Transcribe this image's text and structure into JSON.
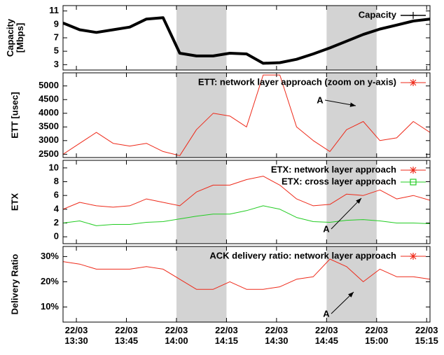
{
  "chart_data": [
    {
      "type": "line",
      "ylabel": "Capacity [Mbps]",
      "xlim": [
        806,
        916
      ],
      "ylim": [
        2.2,
        11.8
      ],
      "yticks": [
        3,
        5,
        7,
        9,
        11
      ],
      "legend": "top right",
      "shaded": [
        [
          840,
          855
        ],
        [
          885,
          900
        ]
      ],
      "x": [
        806,
        811,
        816,
        821,
        826,
        831,
        836,
        841,
        846,
        851,
        856,
        861,
        866,
        871,
        876,
        881,
        886,
        891,
        896,
        901,
        906,
        911,
        916
      ],
      "series": [
        {
          "name": "Capacity",
          "color": "#000000",
          "width": 4,
          "marker": "plus",
          "values": [
            9.2,
            8.2,
            7.8,
            8.2,
            8.6,
            9.8,
            10.0,
            4.7,
            4.3,
            4.3,
            4.7,
            4.6,
            3.2,
            3.3,
            3.8,
            4.6,
            5.5,
            6.5,
            7.5,
            8.3,
            8.9,
            9.5,
            9.8
          ]
        }
      ]
    },
    {
      "type": "line",
      "ylabel": "ETT [usec]",
      "xlim": [
        806,
        916
      ],
      "ylim": [
        2380,
        5480
      ],
      "yticks": [
        2500,
        3000,
        3500,
        4000,
        4500,
        5000
      ],
      "legend": "top right",
      "shaded": [
        [
          840,
          855
        ],
        [
          885,
          900
        ]
      ],
      "annotations": [
        "A"
      ],
      "x": [
        806,
        811,
        816,
        821,
        826,
        831,
        836,
        841,
        846,
        851,
        856,
        861,
        866,
        871,
        876,
        881,
        886,
        891,
        896,
        901,
        906,
        911,
        916
      ],
      "series": [
        {
          "name": "ETT: network layer approach (zoom on y-axis)",
          "color": "#ee2a1a",
          "width": 1,
          "marker": "star",
          "values": [
            2500,
            2900,
            3300,
            2900,
            2800,
            2900,
            2600,
            2450,
            3400,
            4000,
            3900,
            3500,
            5400,
            5400,
            3500,
            3000,
            2600,
            3400,
            3700,
            3000,
            3100,
            3700,
            3300
          ]
        }
      ]
    },
    {
      "type": "line",
      "ylabel": "ETX",
      "xlim": [
        806,
        916
      ],
      "ylim": [
        -1,
        11.1
      ],
      "yticks": [
        0,
        2,
        4,
        6,
        8,
        10
      ],
      "legend": "top right",
      "shaded": [
        [
          840,
          855
        ],
        [
          885,
          900
        ]
      ],
      "annotations": [
        "A"
      ],
      "x": [
        806,
        811,
        816,
        821,
        826,
        831,
        836,
        841,
        846,
        851,
        856,
        861,
        866,
        871,
        876,
        881,
        886,
        891,
        896,
        901,
        906,
        911,
        916
      ],
      "series": [
        {
          "name": "ETX: network layer approach",
          "color": "#ee2a1a",
          "width": 1,
          "marker": "star",
          "values": [
            4,
            5,
            4.5,
            4.3,
            4.5,
            5.5,
            5,
            4.5,
            6.5,
            7.5,
            7.5,
            8.3,
            8.8,
            7.5,
            5.5,
            4.5,
            4.7,
            6.2,
            6,
            6.8,
            5.5,
            6,
            5.3
          ]
        },
        {
          "name": "ETX: cross layer approach",
          "color": "#22cc22",
          "width": 1,
          "marker": "square",
          "values": [
            2,
            2.3,
            1.6,
            1.8,
            1.8,
            2.1,
            2.2,
            2.6,
            3,
            3.3,
            3.3,
            3.8,
            4.5,
            4,
            2.8,
            2.2,
            2.1,
            2.4,
            2.5,
            2.3,
            2,
            2,
            1.9
          ]
        }
      ]
    },
    {
      "type": "line",
      "ylabel": "Delivery Ratio",
      "xlim": [
        806,
        916
      ],
      "ylim": [
        4,
        34
      ],
      "yticks": [
        {
          "value": 10,
          "label": "10%"
        },
        {
          "value": 20,
          "label": "20%"
        },
        {
          "value": 30,
          "label": "30%"
        }
      ],
      "legend": "top right",
      "shaded": [
        [
          840,
          855
        ],
        [
          885,
          900
        ]
      ],
      "annotations": [
        "A"
      ],
      "xticks": [
        {
          "value": 810,
          "label": "22/03 13:30"
        },
        {
          "value": 825,
          "label": "22/03 13:45"
        },
        {
          "value": 840,
          "label": "22/03 14:00"
        },
        {
          "value": 855,
          "label": "22/03 14:15"
        },
        {
          "value": 870,
          "label": "22/03 14:30"
        },
        {
          "value": 885,
          "label": "22/03 14:45"
        },
        {
          "value": 900,
          "label": "22/03 15:00"
        },
        {
          "value": 915,
          "label": "22/03 15:15"
        }
      ],
      "x": [
        806,
        811,
        816,
        821,
        826,
        831,
        836,
        841,
        846,
        851,
        856,
        861,
        866,
        871,
        876,
        881,
        886,
        891,
        896,
        901,
        906,
        911,
        916
      ],
      "series": [
        {
          "name": "ACK delivery ratio: network layer approach",
          "color": "#ee2a1a",
          "width": 1,
          "marker": "star",
          "values": [
            28,
            27,
            25,
            25,
            25,
            26,
            25,
            21,
            17,
            17,
            20,
            17,
            17,
            18,
            21,
            22,
            29,
            26,
            20,
            25,
            22,
            22,
            21
          ]
        }
      ]
    }
  ]
}
